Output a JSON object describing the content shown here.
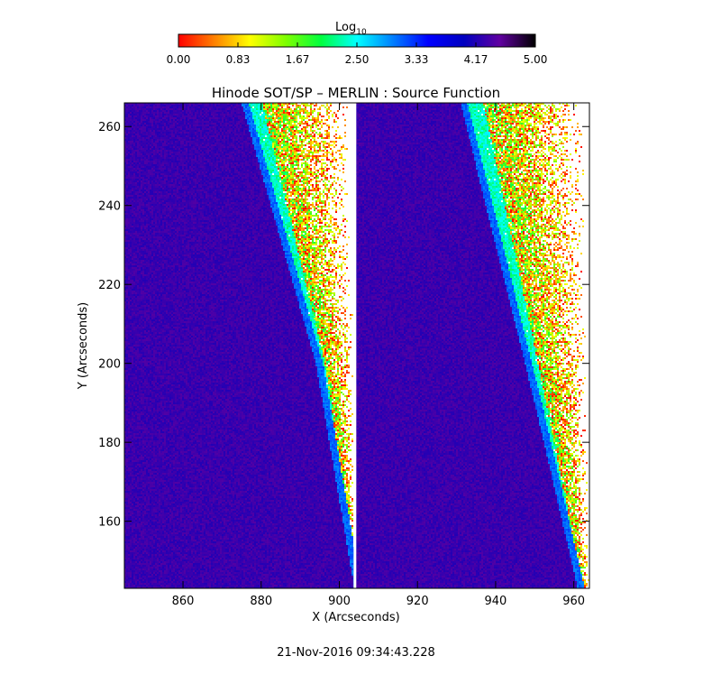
{
  "colorbar": {
    "label": "Log",
    "label_subscript": "10",
    "range": [
      0,
      5
    ],
    "tick_labels": [
      "0.00",
      "0.83",
      "1.67",
      "2.50",
      "3.33",
      "4.17",
      "5.00"
    ],
    "colormap": [
      "#ff0000",
      "#ff8000",
      "#ffff00",
      "#80ff00",
      "#00ff40",
      "#00ffff",
      "#0080ff",
      "#0000ff",
      "#0000c0",
      "#6000a0",
      "#000000"
    ]
  },
  "footer": {
    "timestamp": "21-Nov-2016 09:34:43.228"
  },
  "chart_data": {
    "type": "heatmap",
    "title": "Hinode SOT/SP – MERLIN : Source Function",
    "xlabel": "X (Arcseconds)",
    "ylabel": "Y (Arcseconds)",
    "xlim": [
      845,
      964
    ],
    "ylim": [
      143,
      266
    ],
    "xticks": [
      860,
      880,
      900,
      920,
      940,
      960
    ],
    "yticks": [
      160,
      180,
      200,
      220,
      240,
      260
    ],
    "panel_divider_x": 904,
    "limb_edges": [
      {
        "panel": "left",
        "points": [
          [
            876,
            266
          ],
          [
            895,
            200
          ],
          [
            904,
            148
          ]
        ]
      },
      {
        "panel": "right",
        "points": [
          [
            932,
            266
          ],
          [
            951,
            190
          ],
          [
            962,
            143
          ]
        ]
      }
    ],
    "disk_value": 4.3,
    "limb_value": 3.1,
    "offlimb_value_range": [
      0,
      2.6
    ]
  }
}
